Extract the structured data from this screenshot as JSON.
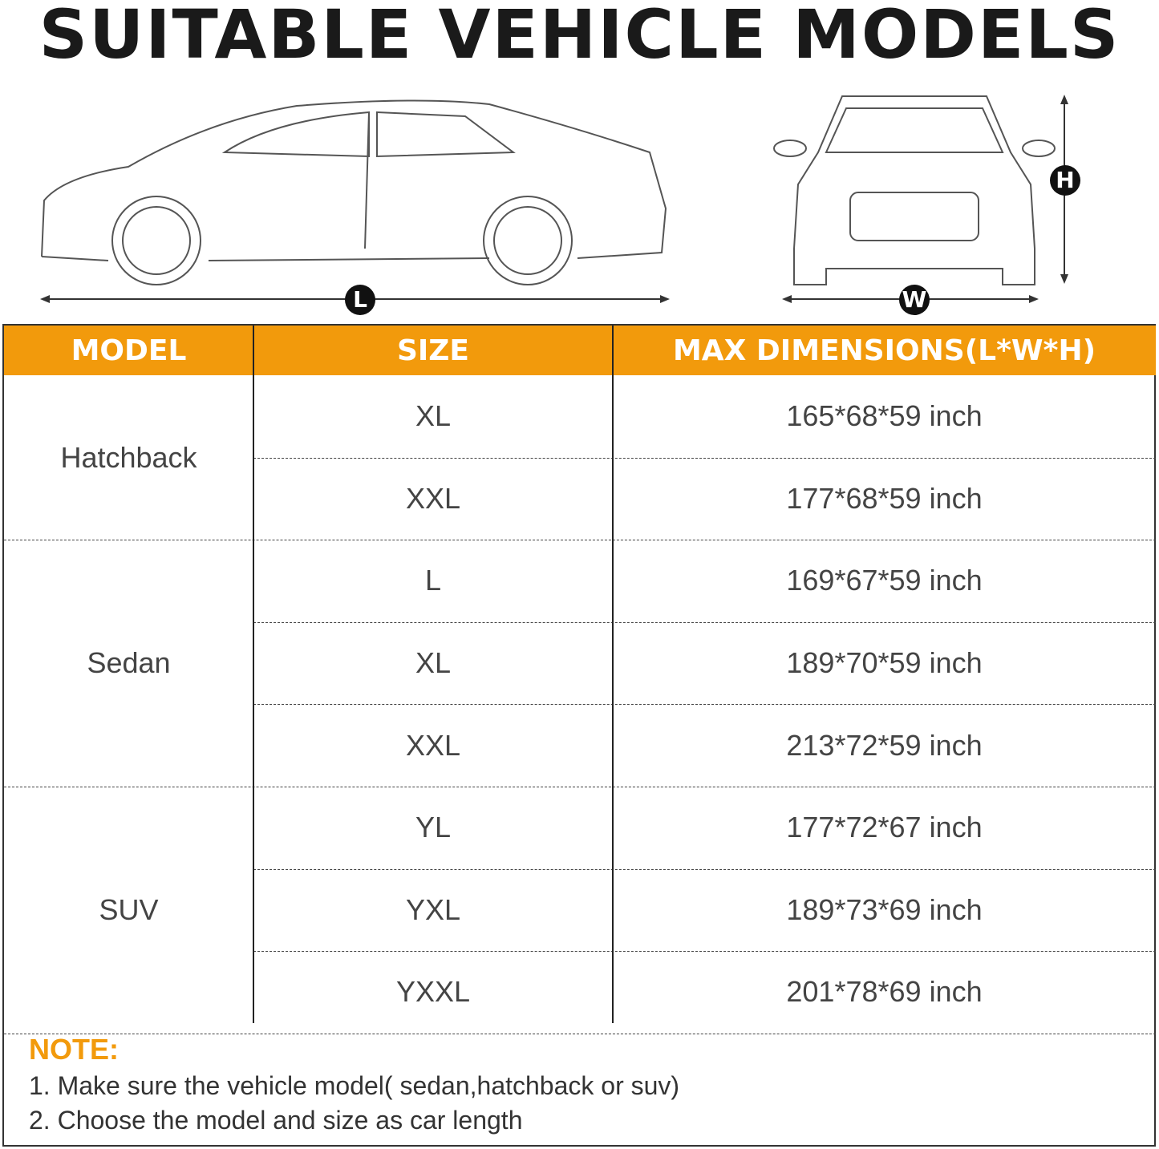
{
  "title": "SUITABLE VEHICLE MODELS",
  "dimension_labels": {
    "length": "L",
    "width": "W",
    "height": "H"
  },
  "accent_color": "#f29a0c",
  "table": {
    "headers": [
      "MODEL",
      "SIZE",
      "MAX DIMENSIONS(L*W*H)"
    ],
    "groups": [
      {
        "model": "Hatchback",
        "rows": [
          {
            "size": "XL",
            "dims": "165*68*59 inch"
          },
          {
            "size": "XXL",
            "dims": "177*68*59 inch"
          }
        ]
      },
      {
        "model": "Sedan",
        "rows": [
          {
            "size": "L",
            "dims": "169*67*59 inch"
          },
          {
            "size": "XL",
            "dims": "189*70*59 inch"
          },
          {
            "size": "XXL",
            "dims": "213*72*59 inch"
          }
        ]
      },
      {
        "model": "SUV",
        "rows": [
          {
            "size": "YL",
            "dims": "177*72*67 inch"
          },
          {
            "size": "YXL",
            "dims": "189*73*69 inch"
          },
          {
            "size": "YXXL",
            "dims": "201*78*69 inch"
          }
        ]
      }
    ]
  },
  "note": {
    "heading": "NOTE:",
    "lines": [
      "1. Make sure the vehicle model( sedan,hatchback or suv)",
      "2. Choose the model and size as car length"
    ]
  }
}
